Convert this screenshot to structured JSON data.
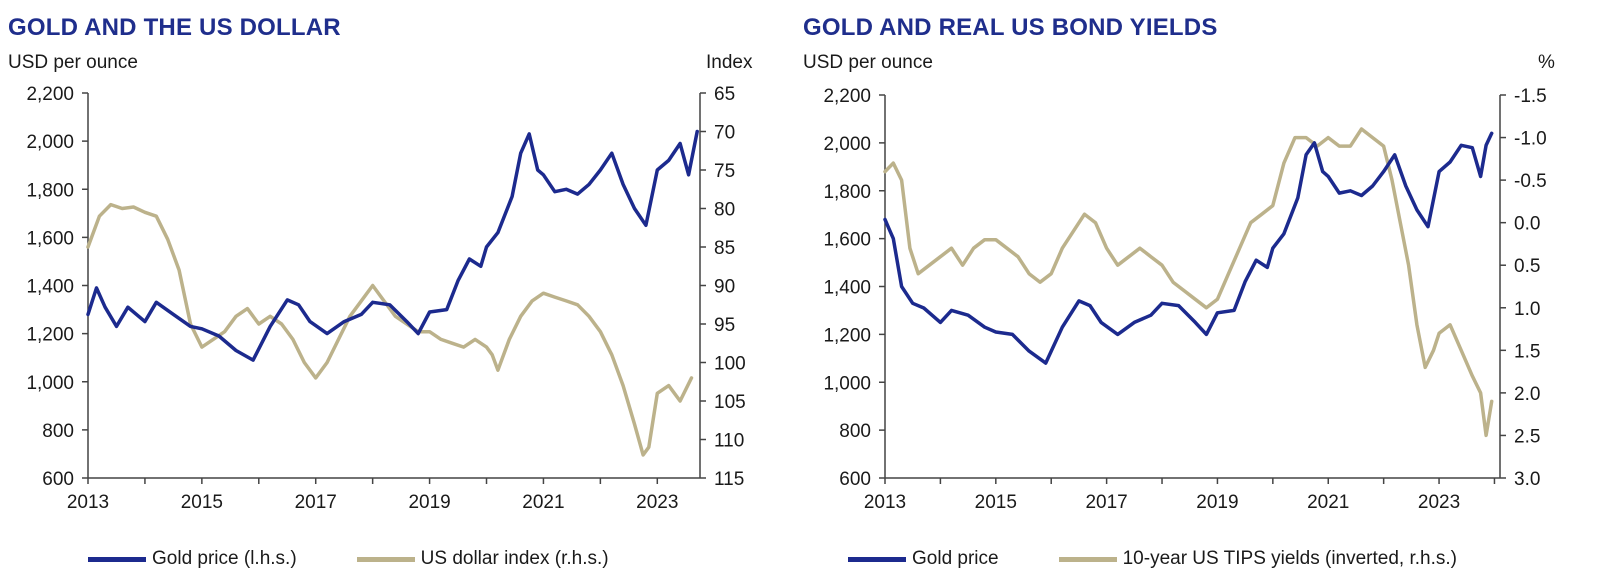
{
  "charts": [
    {
      "title": "GOLD AND THE US DOLLAR",
      "left_unit": "USD per ounce",
      "right_unit": "Index",
      "legend": [
        "Gold price (l.h.s.)",
        "US dollar index (r.h.s.)"
      ]
    },
    {
      "title": "GOLD AND REAL US BOND YIELDS",
      "left_unit": "USD per ounce",
      "right_unit": "%",
      "legend": [
        "Gold price",
        "10-year US TIPS yields (inverted, r.h.s.)"
      ]
    }
  ],
  "colors": {
    "title": "#1f2e8c",
    "gold": "#1c2a8e",
    "secondary": "#bcb28b",
    "axis": "#444444"
  },
  "chart_data": [
    {
      "type": "line",
      "title": "GOLD AND THE US DOLLAR",
      "xlabel": "",
      "x_ticks": [
        "2013",
        "2015",
        "2017",
        "2019",
        "2021",
        "2023"
      ],
      "x_range": [
        2013,
        2023.75
      ],
      "left_axis": {
        "label": "USD per ounce",
        "ylim": [
          600,
          2200
        ],
        "ticks": [
          "600",
          "800",
          "1,000",
          "1,200",
          "1,400",
          "1,600",
          "1,800",
          "2,000",
          "2,200"
        ]
      },
      "right_axis": {
        "label": "Index",
        "ylim": [
          65,
          115
        ],
        "inverted": true,
        "ticks": [
          "65",
          "70",
          "75",
          "80",
          "85",
          "90",
          "95",
          "100",
          "105",
          "110",
          "115"
        ]
      },
      "series": [
        {
          "name": "Gold price (l.h.s.)",
          "axis": "left",
          "x": [
            2013.0,
            2013.15,
            2013.3,
            2013.5,
            2013.7,
            2014.0,
            2014.2,
            2014.5,
            2014.8,
            2015.0,
            2015.3,
            2015.6,
            2015.9,
            2016.2,
            2016.5,
            2016.7,
            2016.9,
            2017.2,
            2017.5,
            2017.8,
            2018.0,
            2018.3,
            2018.6,
            2018.8,
            2019.0,
            2019.3,
            2019.5,
            2019.7,
            2019.9,
            2020.0,
            2020.2,
            2020.45,
            2020.6,
            2020.75,
            2020.9,
            2021.0,
            2021.2,
            2021.4,
            2021.6,
            2021.8,
            2022.0,
            2022.2,
            2022.4,
            2022.6,
            2022.8,
            2023.0,
            2023.2,
            2023.4,
            2023.55,
            2023.7
          ],
          "y": [
            1280,
            1390,
            1310,
            1230,
            1310,
            1250,
            1330,
            1280,
            1230,
            1220,
            1190,
            1130,
            1090,
            1230,
            1340,
            1320,
            1250,
            1200,
            1250,
            1280,
            1330,
            1320,
            1250,
            1200,
            1290,
            1300,
            1420,
            1510,
            1480,
            1560,
            1620,
            1770,
            1950,
            2030,
            1880,
            1860,
            1790,
            1800,
            1780,
            1820,
            1880,
            1950,
            1820,
            1720,
            1650,
            1880,
            1920,
            1990,
            1860,
            2040
          ]
        },
        {
          "name": "US dollar index (r.h.s.)",
          "axis": "right",
          "x": [
            2013.0,
            2013.2,
            2013.4,
            2013.6,
            2013.8,
            2014.0,
            2014.2,
            2014.4,
            2014.6,
            2014.8,
            2015.0,
            2015.2,
            2015.4,
            2015.6,
            2015.8,
            2016.0,
            2016.2,
            2016.4,
            2016.6,
            2016.8,
            2017.0,
            2017.2,
            2017.4,
            2017.6,
            2017.8,
            2018.0,
            2018.2,
            2018.4,
            2018.6,
            2018.8,
            2019.0,
            2019.2,
            2019.4,
            2019.6,
            2019.8,
            2020.0,
            2020.1,
            2020.2,
            2020.4,
            2020.6,
            2020.8,
            2021.0,
            2021.2,
            2021.4,
            2021.6,
            2021.8,
            2022.0,
            2022.2,
            2022.4,
            2022.6,
            2022.75,
            2022.85,
            2023.0,
            2023.2,
            2023.4,
            2023.6
          ],
          "y": [
            85,
            81,
            79.5,
            80,
            79.8,
            80.5,
            81,
            84,
            88,
            95,
            98,
            97,
            96,
            94,
            93,
            95,
            94,
            95,
            97,
            100,
            102,
            100,
            97,
            94,
            92,
            90,
            92,
            94,
            95,
            96,
            96,
            97,
            97.5,
            98,
            97,
            98,
            99,
            101,
            97,
            94,
            92,
            91,
            91.5,
            92,
            92.5,
            94,
            96,
            99,
            103,
            108,
            112,
            111,
            104,
            103,
            105,
            102
          ]
        }
      ]
    },
    {
      "type": "line",
      "title": "GOLD AND REAL US BOND YIELDS",
      "xlabel": "",
      "x_ticks": [
        "2013",
        "2015",
        "2017",
        "2019",
        "2021",
        "2023"
      ],
      "x_range": [
        2013,
        2024.1
      ],
      "left_axis": {
        "label": "USD per ounce",
        "ylim": [
          600,
          2200
        ],
        "ticks": [
          "600",
          "800",
          "1,000",
          "1,200",
          "1,400",
          "1,600",
          "1,800",
          "2,000",
          "2,200"
        ]
      },
      "right_axis": {
        "label": "%",
        "ylim": [
          -1.5,
          3.0
        ],
        "inverted": true,
        "ticks": [
          "-1.5",
          "-1.0",
          "-0.5",
          "0.0",
          "0.5",
          "1.0",
          "1.5",
          "2.0",
          "2.5",
          "3.0"
        ]
      },
      "series": [
        {
          "name": "Gold price",
          "axis": "left",
          "x": [
            2013.0,
            2013.15,
            2013.3,
            2013.5,
            2013.7,
            2014.0,
            2014.2,
            2014.5,
            2014.8,
            2015.0,
            2015.3,
            2015.6,
            2015.9,
            2016.2,
            2016.5,
            2016.7,
            2016.9,
            2017.2,
            2017.5,
            2017.8,
            2018.0,
            2018.3,
            2018.6,
            2018.8,
            2019.0,
            2019.3,
            2019.5,
            2019.7,
            2019.9,
            2020.0,
            2020.2,
            2020.45,
            2020.6,
            2020.75,
            2020.9,
            2021.0,
            2021.2,
            2021.4,
            2021.6,
            2021.8,
            2022.0,
            2022.2,
            2022.4,
            2022.6,
            2022.8,
            2023.0,
            2023.2,
            2023.4,
            2023.6,
            2023.75,
            2023.85,
            2023.95
          ],
          "y": [
            1680,
            1600,
            1400,
            1330,
            1310,
            1250,
            1300,
            1280,
            1230,
            1210,
            1200,
            1130,
            1080,
            1230,
            1340,
            1320,
            1250,
            1200,
            1250,
            1280,
            1330,
            1320,
            1250,
            1200,
            1290,
            1300,
            1420,
            1510,
            1480,
            1560,
            1620,
            1770,
            1950,
            2000,
            1880,
            1860,
            1790,
            1800,
            1780,
            1820,
            1880,
            1950,
            1820,
            1720,
            1650,
            1880,
            1920,
            1990,
            1980,
            1860,
            1990,
            2040
          ]
        },
        {
          "name": "10-year US TIPS yields (inverted, r.h.s.)",
          "axis": "right",
          "x": [
            2013.0,
            2013.15,
            2013.3,
            2013.45,
            2013.6,
            2013.8,
            2014.0,
            2014.2,
            2014.4,
            2014.6,
            2014.8,
            2015.0,
            2015.2,
            2015.4,
            2015.6,
            2015.8,
            2016.0,
            2016.2,
            2016.4,
            2016.6,
            2016.8,
            2017.0,
            2017.2,
            2017.4,
            2017.6,
            2017.8,
            2018.0,
            2018.2,
            2018.4,
            2018.6,
            2018.8,
            2019.0,
            2019.2,
            2019.4,
            2019.6,
            2019.8,
            2020.0,
            2020.2,
            2020.4,
            2020.6,
            2020.8,
            2021.0,
            2021.2,
            2021.4,
            2021.6,
            2021.8,
            2022.0,
            2022.15,
            2022.3,
            2022.45,
            2022.6,
            2022.75,
            2022.9,
            2023.0,
            2023.2,
            2023.4,
            2023.6,
            2023.75,
            2023.85,
            2023.95
          ],
          "y": [
            -0.6,
            -0.7,
            -0.5,
            0.3,
            0.6,
            0.5,
            0.4,
            0.3,
            0.5,
            0.3,
            0.2,
            0.2,
            0.3,
            0.4,
            0.6,
            0.7,
            0.6,
            0.3,
            0.1,
            -0.1,
            0.0,
            0.3,
            0.5,
            0.4,
            0.3,
            0.4,
            0.5,
            0.7,
            0.8,
            0.9,
            1.0,
            0.9,
            0.6,
            0.3,
            0.0,
            -0.1,
            -0.2,
            -0.7,
            -1.0,
            -1.0,
            -0.9,
            -1.0,
            -0.9,
            -0.9,
            -1.1,
            -1.0,
            -0.9,
            -0.5,
            0.0,
            0.5,
            1.2,
            1.7,
            1.5,
            1.3,
            1.2,
            1.5,
            1.8,
            2.0,
            2.5,
            2.1
          ]
        }
      ]
    }
  ]
}
